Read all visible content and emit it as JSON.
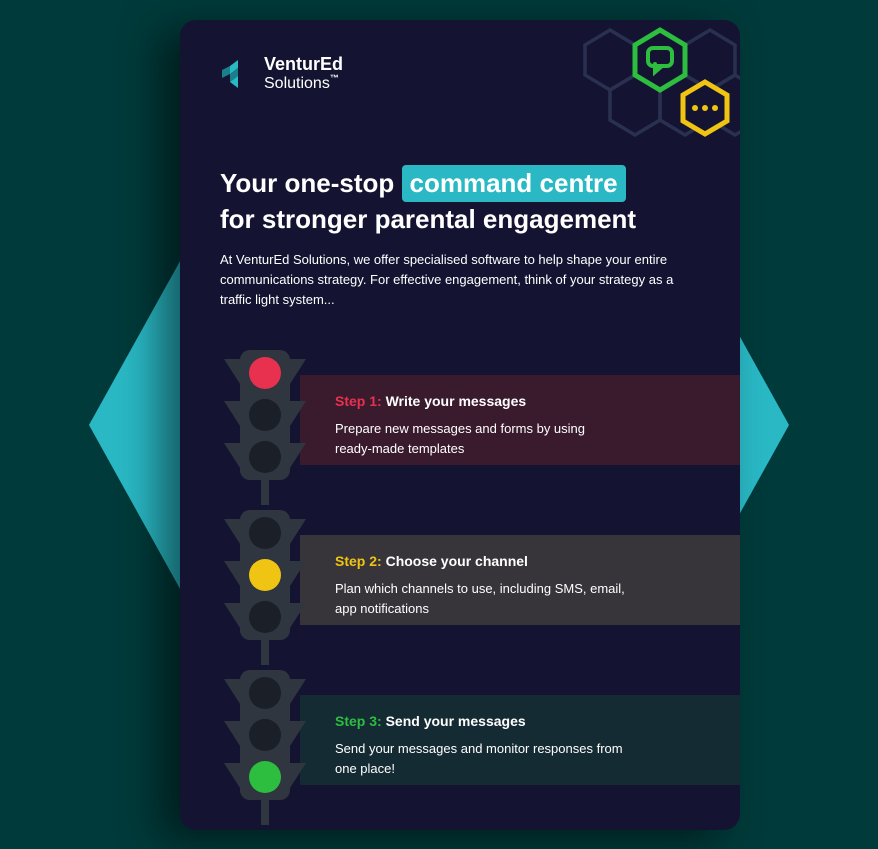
{
  "brand": {
    "name_line1": "VenturEd",
    "name_line2": "Solutions",
    "name_tm": "™",
    "logo_color_1": "#29b8c4",
    "logo_color_2": "#1a7f8c"
  },
  "background": {
    "page_color": "#003a3a",
    "hexagon_color": "#29b8c4",
    "card_color": "#141432"
  },
  "decor": {
    "hex_outline_color": "#2a3050",
    "chat_icon_stroke": "#2dbd3f",
    "chat_icon_fill": "#141432",
    "ellipsis_hex_stroke": "#f0c412",
    "ellipsis_dot_color": "#f0c412"
  },
  "headline": {
    "part1": "Your one-stop",
    "highlight": "command centre",
    "part2": "for stronger parental engagement",
    "highlight_bg": "#29b8c4",
    "text_color": "#ffffff",
    "fontsize": 26
  },
  "intro": {
    "text": "At VenturEd Solutions, we offer specialised software to help shape your entire communications strategy. For effective engagement, think of your strategy as a traffic light system...",
    "fontsize": 13,
    "text_color": "#ffffff"
  },
  "traffic_light_style": {
    "body_color": "#2f3640",
    "off_light_color": "#1a1f28",
    "red": "#e8304f",
    "amber": "#f0c412",
    "green": "#2dbd3f"
  },
  "steps": [
    {
      "label": "Step 1:",
      "title": "Write your messages",
      "body": "Prepare new messages and forms by using ready-made templates",
      "label_color": "#e8304f",
      "bar_bg": "#3a1b2e",
      "active_light": "red"
    },
    {
      "label": "Step 2:",
      "title": "Choose your channel",
      "body": "Plan which channels to use, including SMS, email, app notifications",
      "label_color": "#f0c412",
      "bar_bg": "#37353a",
      "active_light": "amber"
    },
    {
      "label": "Step 3:",
      "title": "Send your messages",
      "body": "Send your messages and monitor responses from one place!",
      "label_color": "#2dbd3f",
      "bar_bg": "#152b34",
      "active_light": "green"
    }
  ]
}
